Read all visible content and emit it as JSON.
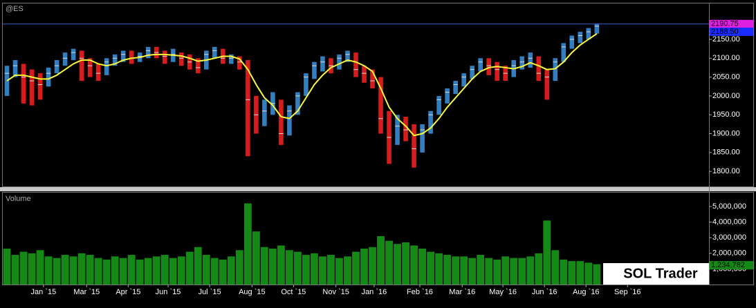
{
  "chart_data": [
    {
      "type": "ohlc",
      "symbol": "@ES",
      "color_up": "#2f7fc4",
      "color_down": "#e01818",
      "ma_color": "#ffff33",
      "xlim": [
        0,
        85
      ],
      "ylim": [
        1760,
        2247
      ],
      "yticks": [
        {
          "value": 1800,
          "label": "1800.00"
        },
        {
          "value": 1850,
          "label": "1850.00"
        },
        {
          "value": 1900,
          "label": "1900.00"
        },
        {
          "value": 1950,
          "label": "1950.00"
        },
        {
          "value": 2000,
          "label": "2000.00"
        },
        {
          "value": 2050,
          "label": "2050.00"
        },
        {
          "value": 2100,
          "label": "2100.00"
        },
        {
          "value": 2150,
          "label": "2150.00"
        }
      ],
      "high": [
        2080,
        2095,
        2085,
        2070,
        2060,
        2075,
        2095,
        2115,
        2125,
        2120,
        2100,
        2085,
        2100,
        2110,
        2120,
        2120,
        2115,
        2130,
        2130,
        2120,
        2125,
        2115,
        2110,
        2100,
        2120,
        2130,
        2125,
        2110,
        2105,
        2095,
        2000,
        1990,
        2010,
        1990,
        1975,
        2010,
        2060,
        2090,
        2105,
        2100,
        2110,
        2120,
        2115,
        2080,
        2070,
        2050,
        1960,
        1950,
        1945,
        1925,
        1925,
        1960,
        2000,
        2020,
        2040,
        2060,
        2080,
        2100,
        2100,
        2090,
        2080,
        2095,
        2105,
        2115,
        2105,
        2070,
        2100,
        2140,
        2160,
        2170,
        2180,
        2192
      ],
      "low": [
        2000,
        2050,
        1980,
        1975,
        1990,
        2025,
        2060,
        2080,
        2095,
        2040,
        2050,
        2040,
        2055,
        2080,
        2090,
        2085,
        2090,
        2100,
        2100,
        2085,
        2090,
        2080,
        2070,
        2060,
        2070,
        2100,
        2085,
        2085,
        2070,
        1840,
        1900,
        1920,
        1950,
        1870,
        1895,
        1950,
        2000,
        2045,
        2065,
        2060,
        2070,
        2090,
        2050,
        2035,
        2020,
        1900,
        1820,
        1870,
        1880,
        1810,
        1850,
        1900,
        1950,
        1980,
        2005,
        2025,
        2045,
        2065,
        2055,
        2040,
        2040,
        2050,
        2070,
        2075,
        2040,
        1990,
        2040,
        2090,
        2125,
        2140,
        2150,
        2165
      ],
      "close": [
        2060,
        2080,
        2050,
        2040,
        2030,
        2060,
        2080,
        2100,
        2115,
        2100,
        2080,
        2060,
        2090,
        2100,
        2110,
        2100,
        2105,
        2120,
        2115,
        2105,
        2110,
        2100,
        2090,
        2075,
        2110,
        2120,
        2100,
        2100,
        2090,
        1990,
        1950,
        1960,
        1980,
        1900,
        1960,
        2000,
        2050,
        2080,
        2090,
        2080,
        2100,
        2110,
        2070,
        2060,
        2040,
        1940,
        1890,
        1920,
        1910,
        1860,
        1910,
        1950,
        1990,
        2010,
        2030,
        2050,
        2070,
        2090,
        2080,
        2070,
        2060,
        2080,
        2090,
        2100,
        2060,
        2050,
        2090,
        2130,
        2150,
        2160,
        2170,
        2185
      ],
      "ma": [
        2040,
        2055,
        2055,
        2050,
        2045,
        2045,
        2055,
        2070,
        2085,
        2095,
        2095,
        2085,
        2080,
        2085,
        2095,
        2100,
        2102,
        2108,
        2110,
        2110,
        2108,
        2106,
        2100,
        2092,
        2095,
        2100,
        2105,
        2105,
        2098,
        2070,
        2030,
        1995,
        1975,
        1945,
        1940,
        1960,
        1995,
        2030,
        2055,
        2075,
        2085,
        2095,
        2090,
        2080,
        2065,
        2020,
        1970,
        1940,
        1920,
        1895,
        1900,
        1915,
        1940,
        1970,
        1995,
        2020,
        2045,
        2065,
        2075,
        2078,
        2075,
        2072,
        2078,
        2088,
        2080,
        2070,
        2072,
        2090,
        2115,
        2135,
        2150,
        2165
      ],
      "price_markers": [
        {
          "value": 2190.75,
          "label": "2190.75",
          "color": "#e020e0"
        },
        {
          "value": 2188.5,
          "label": "2188.50",
          "color": "#1a2cff"
        }
      ]
    },
    {
      "type": "bar",
      "title": "Volume",
      "color": "#138a13",
      "xlim": [
        0,
        85
      ],
      "ylim": [
        0,
        5840000
      ],
      "yticks": [
        {
          "value": 1000000,
          "label": "1,000,000"
        },
        {
          "value": 2000000,
          "label": "2,000,000"
        },
        {
          "value": 3000000,
          "label": "3,000,000"
        },
        {
          "value": 4000000,
          "label": "4,000,000"
        },
        {
          "value": 5000000,
          "label": "5,000,000"
        }
      ],
      "xticks": [
        {
          "value": 4.9,
          "label": "Jan `15"
        },
        {
          "value": 10.1,
          "label": "Mar `15"
        },
        {
          "value": 15.1,
          "label": "Apr `15"
        },
        {
          "value": 19.9,
          "label": "Jun `15"
        },
        {
          "value": 24.9,
          "label": "Jul `15"
        },
        {
          "value": 30,
          "label": "Aug `15"
        },
        {
          "value": 35,
          "label": "Oct `15"
        },
        {
          "value": 40.1,
          "label": "Nov `15"
        },
        {
          "value": 44.7,
          "label": "Jan `16"
        },
        {
          "value": 50.2,
          "label": "Feb `16"
        },
        {
          "value": 55.3,
          "label": "Mar `16"
        },
        {
          "value": 60.2,
          "label": "May `16"
        },
        {
          "value": 65.2,
          "label": "Jun `16"
        },
        {
          "value": 70.2,
          "label": "Aug `16"
        },
        {
          "value": 75.2,
          "label": "Sep `16"
        }
      ],
      "values": [
        2300000,
        1900000,
        2100000,
        2000000,
        2200000,
        1800000,
        1700000,
        1900000,
        1800000,
        2000000,
        1900000,
        1700000,
        1600000,
        1800000,
        1700000,
        1900000,
        1600000,
        1700000,
        1800000,
        1900000,
        1700000,
        1800000,
        2100000,
        2400000,
        1900000,
        1700000,
        1600000,
        1800000,
        2200000,
        5200000,
        3400000,
        2400000,
        2300000,
        2500000,
        2200000,
        2100000,
        1900000,
        2000000,
        1800000,
        1900000,
        1700000,
        1800000,
        2100000,
        2300000,
        2400000,
        3100000,
        2800000,
        2600000,
        2700000,
        2500000,
        2300000,
        2100000,
        2000000,
        1900000,
        1800000,
        1800000,
        1700000,
        1900000,
        1700000,
        1600000,
        1800000,
        1700000,
        1700000,
        1800000,
        2000000,
        4100000,
        2200000,
        1600000,
        1500000,
        1500000,
        1400000,
        1300000
      ],
      "last_volume": {
        "value": 1234782,
        "label": "1,234,782"
      }
    }
  ],
  "watermark": "SOL Trader"
}
